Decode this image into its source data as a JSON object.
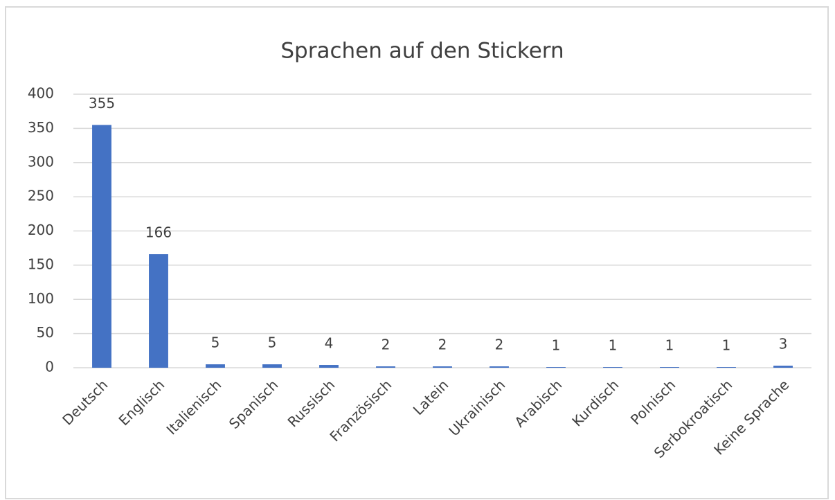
{
  "chart_data": {
    "type": "bar",
    "title": "Sprachen auf den Stickern",
    "categories": [
      "Deutsch",
      "Englisch",
      "Italienisch",
      "Spanisch",
      "Russisch",
      "Französisch",
      "Latein",
      "Ukrainisch",
      "Arabisch",
      "Kurdisch",
      "Polnisch",
      "Serbokroatisch",
      "Keine Sprache"
    ],
    "values": [
      355,
      166,
      5,
      5,
      4,
      2,
      2,
      2,
      1,
      1,
      1,
      1,
      3
    ],
    "color": "#4472c4",
    "ylim": [
      0,
      400
    ],
    "yticks": [
      0,
      50,
      100,
      150,
      200,
      250,
      300,
      350,
      400
    ],
    "grid": true
  }
}
